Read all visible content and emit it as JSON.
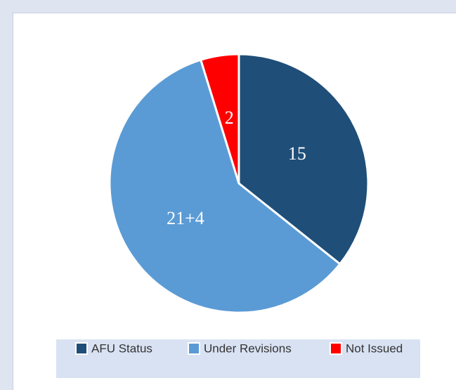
{
  "chart_data": {
    "type": "pie",
    "categories": [
      "AFU Status",
      "Under Revisions",
      "Not Issued"
    ],
    "values": [
      15,
      25,
      2
    ],
    "value_labels": [
      "15",
      "21+4",
      "2"
    ],
    "colors": [
      "#1f4e79",
      "#5b9bd5",
      "#ff0000"
    ],
    "legend": "bottom"
  }
}
